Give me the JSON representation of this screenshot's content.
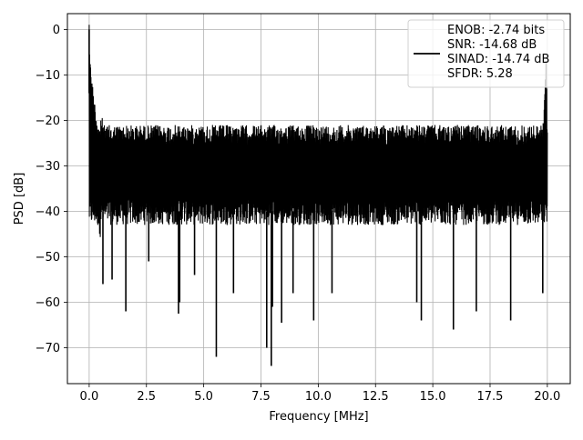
{
  "chart_data": {
    "type": "line",
    "title": "",
    "xlabel": "Frequency [MHz]",
    "ylabel": "PSD [dB]",
    "xlim": [
      -0.95,
      21.0
    ],
    "ylim": [
      -77.9,
      3.5
    ],
    "grid": true,
    "legend_placement": "top-right",
    "xticks": [
      0.0,
      2.5,
      5.0,
      7.5,
      10.0,
      12.5,
      15.0,
      17.5,
      20.0
    ],
    "xtick_labels": [
      "0.0",
      "2.5",
      "5.0",
      "7.5",
      "10.0",
      "12.5",
      "15.0",
      "17.5",
      "20.0"
    ],
    "yticks": [
      0,
      -10,
      -20,
      -30,
      -40,
      -50,
      -60,
      -70
    ],
    "ytick_labels": [
      "0",
      "−10",
      "−20",
      "−30",
      "−40",
      "−50",
      "−60",
      "−70"
    ],
    "series": [
      {
        "name": "ENOB: -2.74 bits\nSNR: -14.68 dB\nSINAD: -14.74 dB\nSFDR: 5.28",
        "color": "#000000",
        "x": [
          0.0,
          0.03,
          0.06,
          0.1,
          0.15,
          0.2,
          0.3,
          0.45,
          0.6,
          0.8,
          1.0,
          1.5,
          2.0,
          2.5,
          3.0,
          3.5,
          3.9,
          4.5,
          5.0,
          5.6,
          6.3,
          7.0,
          7.9,
          8.0,
          8.4,
          9.0,
          10.0,
          11.0,
          12.0,
          12.5,
          13.5,
          14.0,
          14.5,
          15.0,
          15.9,
          16.5,
          17.5,
          18.4,
          19.0,
          19.8,
          19.95,
          20.0
        ],
        "y": [
          0.0,
          -13.0,
          -9.0,
          -14.0,
          -16.0,
          -18.0,
          -22.0,
          -25.0,
          -28.0,
          -32.0,
          -30.0,
          -31.0,
          -30.0,
          -31.0,
          -32.0,
          -30.0,
          -33.0,
          -31.0,
          -32.0,
          -31.0,
          -30.0,
          -32.0,
          -31.0,
          -33.0,
          -31.0,
          -32.0,
          -31.0,
          -30.0,
          -32.0,
          -31.0,
          -30.0,
          -32.0,
          -31.0,
          -30.0,
          -32.0,
          -31.0,
          -30.0,
          -32.0,
          -31.0,
          -30.0,
          -13.0,
          -33.0
        ],
        "upper_envelope": -21.0,
        "lower_envelope": -43.0,
        "dips": [
          {
            "x": 0.6,
            "y": -56.0
          },
          {
            "x": 1.0,
            "y": -55.0
          },
          {
            "x": 1.6,
            "y": -62.0
          },
          {
            "x": 2.6,
            "y": -51.0
          },
          {
            "x": 3.9,
            "y": -62.5
          },
          {
            "x": 3.95,
            "y": -60.0
          },
          {
            "x": 4.6,
            "y": -54.0
          },
          {
            "x": 5.55,
            "y": -72.0
          },
          {
            "x": 6.3,
            "y": -58.0
          },
          {
            "x": 7.75,
            "y": -70.0
          },
          {
            "x": 7.95,
            "y": -74.0
          },
          {
            "x": 8.0,
            "y": -61.0
          },
          {
            "x": 8.4,
            "y": -64.5
          },
          {
            "x": 8.9,
            "y": -58.0
          },
          {
            "x": 9.8,
            "y": -64.0
          },
          {
            "x": 10.6,
            "y": -58.0
          },
          {
            "x": 14.3,
            "y": -60.0
          },
          {
            "x": 14.5,
            "y": -64.0
          },
          {
            "x": 15.9,
            "y": -66.0
          },
          {
            "x": 16.9,
            "y": -62.0
          },
          {
            "x": 18.4,
            "y": -64.0
          },
          {
            "x": 19.8,
            "y": -58.0
          }
        ]
      }
    ]
  }
}
